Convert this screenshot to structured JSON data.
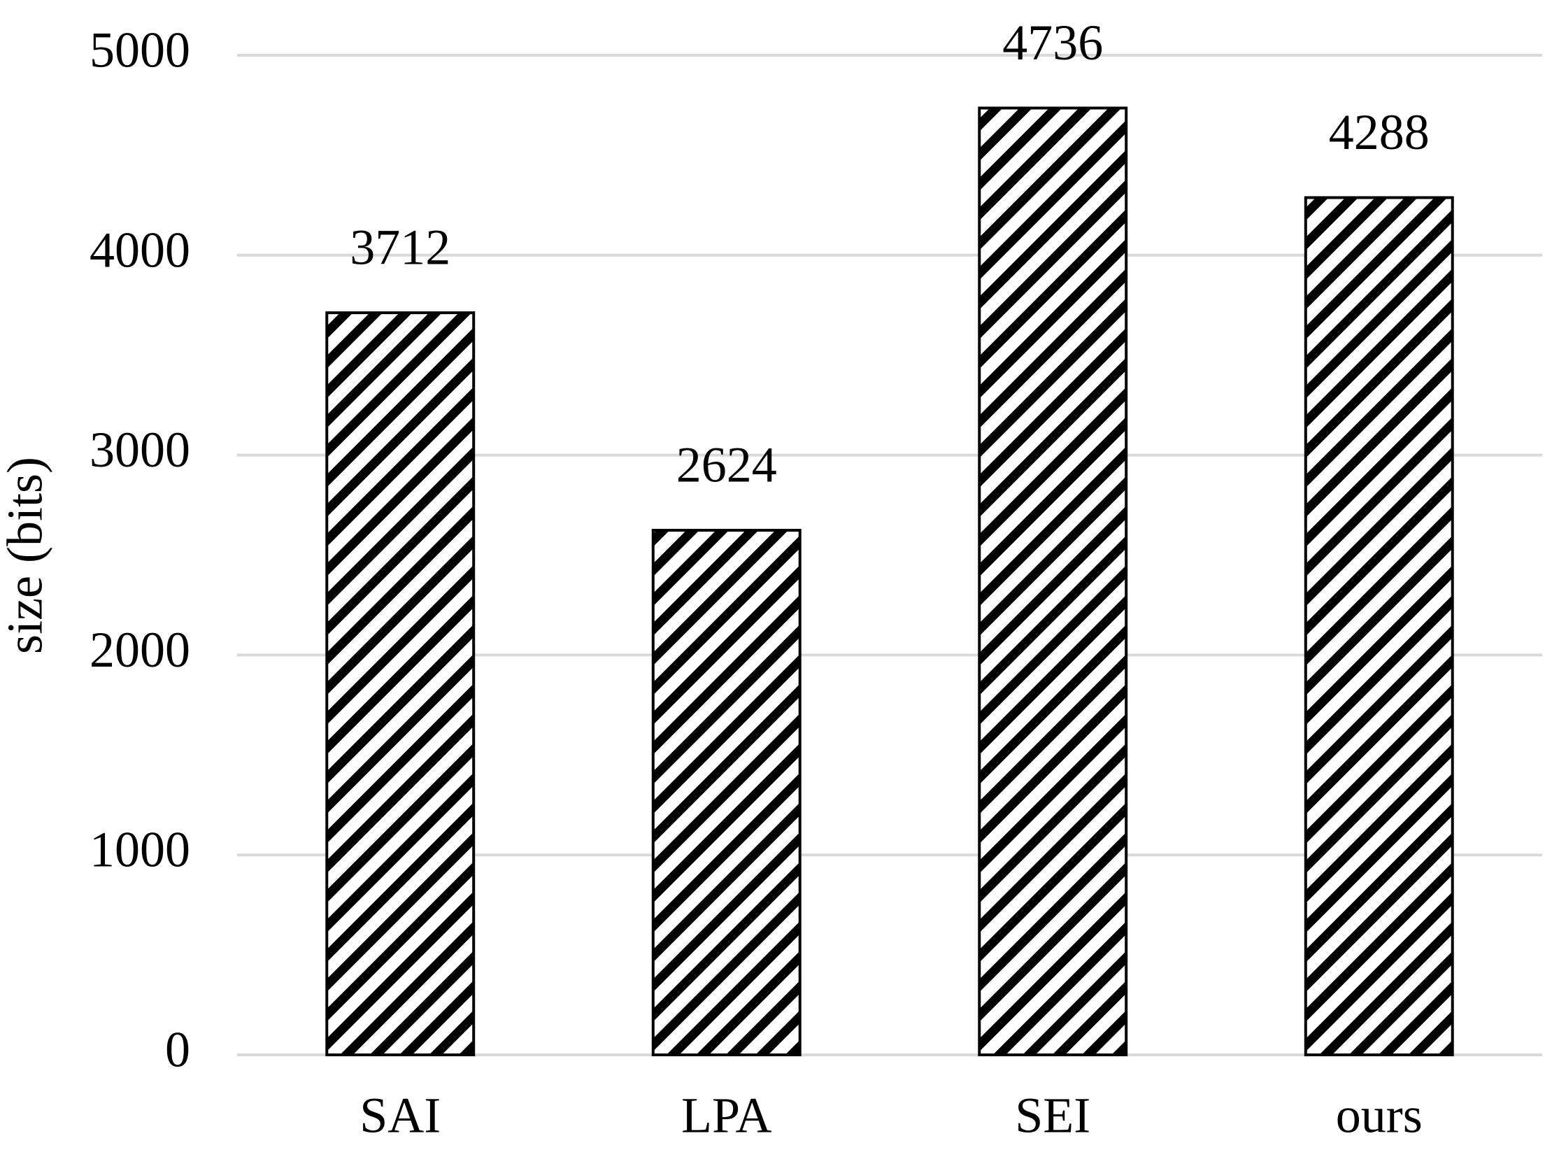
{
  "chart_data": {
    "type": "bar",
    "y_label": "size (bits)",
    "categories": [
      "SAI",
      "LPA",
      "SEI",
      "ours"
    ],
    "values": [
      3712,
      2624,
      4736,
      4288
    ],
    "color": "#000000",
    "hatch": "diagonal",
    "ylim": [
      0,
      5000
    ],
    "yticks": [
      0,
      1000,
      2000,
      3000,
      4000,
      5000
    ],
    "grid": true
  }
}
